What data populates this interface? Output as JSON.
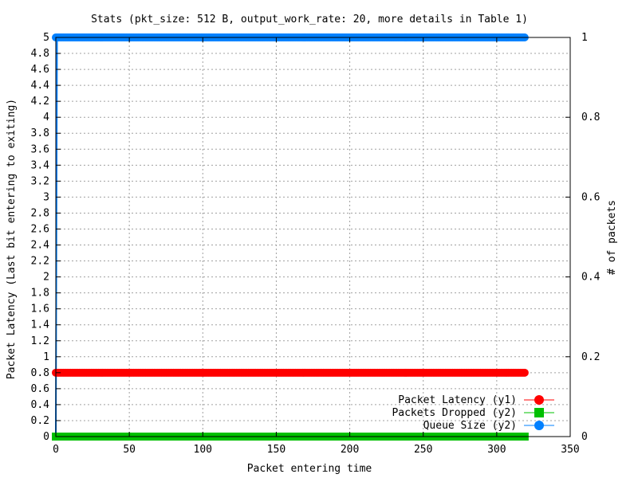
{
  "chart_data": {
    "type": "line",
    "title": "Stats (pkt_size: 512 B, output_work_rate: 20, more details in Table 1)",
    "xlabel": "Packet entering time",
    "ylabel": "Packet Latency (Last bit entering to exiting)",
    "y2label": "# of packets",
    "xlim": [
      0,
      350
    ],
    "ylim": [
      0,
      5
    ],
    "y2lim": [
      0,
      1
    ],
    "xticks": [
      "0",
      "50",
      "100",
      "150",
      "200",
      "250",
      "300",
      "350"
    ],
    "yticks": [
      "0",
      "0.2",
      "0.4",
      "0.6",
      "0.8",
      "1",
      "1.2",
      "1.4",
      "1.6",
      "1.8",
      "2",
      "2.2",
      "2.4",
      "2.6",
      "2.8",
      "3",
      "3.2",
      "3.4",
      "3.6",
      "3.8",
      "4",
      "4.2",
      "4.4",
      "4.6",
      "4.8",
      "5"
    ],
    "y2ticks": [
      "0",
      "0.2",
      "0.4",
      "0.6",
      "0.8",
      "1"
    ],
    "grid": true,
    "legend_position": "bottom-right",
    "series": [
      {
        "name": "Packet Latency (y1)",
        "axis": "y1",
        "color": "#ff0000",
        "marker": "circle",
        "x_range": [
          0,
          319
        ],
        "value": 0.8
      },
      {
        "name": "Packets Dropped (y2)",
        "axis": "y2",
        "color": "#00c000",
        "marker": "square",
        "x_range": [
          0,
          319
        ],
        "value": 0
      },
      {
        "name": "Queue Size (y2)",
        "axis": "y2",
        "color": "#0080ff",
        "marker": "circle",
        "x_range": [
          0,
          319
        ],
        "value": 1,
        "initial_value": 0
      }
    ]
  }
}
